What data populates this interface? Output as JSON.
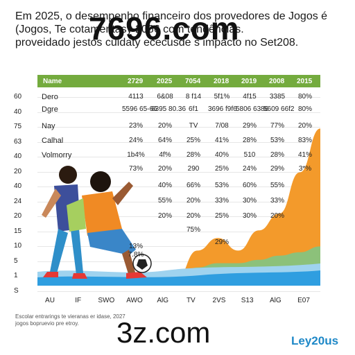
{
  "header": {
    "line1": "Em 2025, o desempenho financeiro dos provedores de Jogos é",
    "line2": "(Jogos, Te cotamentasy 2066 com tendências.",
    "line3": "proveidado jestos cuidaty ececusde s impacto no Set208."
  },
  "watermarks": {
    "top": "7696.com",
    "bottom": "3z.com"
  },
  "footnote": {
    "line1": "Escolar entrarings te vieranas er idase, 2027",
    "line2": "jogos bopruevio pre etroy."
  },
  "brand": "Ley20us",
  "colors": {
    "table_header": "#74ab3e",
    "orange": "#f39a2b",
    "green": "#8cc17a",
    "blue": "#2f9ee0",
    "light_blue": "#9fd3ef"
  },
  "chart_data": {
    "type": "area",
    "y_ticks": [
      "60",
      "40",
      "75",
      "63",
      "40",
      "20",
      "40",
      "24",
      "20",
      "15",
      "10",
      "5",
      "1",
      "S"
    ],
    "x_ticks": [
      "AU",
      "IF",
      "SWO",
      "AWO",
      "AlG",
      "TV",
      "2VS",
      "S13",
      "AlG",
      "E07"
    ],
    "table": {
      "header_label": "Name",
      "columns": [
        "2729",
        "2025",
        "7054",
        "2018",
        "2019",
        "2008",
        "2015"
      ],
      "rows": [
        {
          "label": "Dero",
          "cells": [
            "4113",
            "6&08",
            "8 f14",
            "5f1%",
            "4f15",
            "3385",
            "80%"
          ]
        },
        {
          "label": "Dgre",
          "cells": [
            "5596 65-66",
            "6395 80.36",
            "6f1",
            "3696 f9f6",
            "5806 6386",
            "5609 66f2",
            "80%"
          ]
        },
        {
          "label": "Nay",
          "cells": [
            "23%",
            "20%",
            "TV",
            "7/08",
            "29%",
            "77%",
            "20%"
          ]
        },
        {
          "label": "Calhal",
          "cells": [
            "24%",
            "64%",
            "25%",
            "41%",
            "28%",
            "53%",
            "83%"
          ]
        },
        {
          "label": "Volmorry",
          "cells": [
            "1b4%",
            "4f%",
            "28%",
            "40%",
            "510",
            "28%",
            "41%"
          ]
        }
      ],
      "extra_rows": [
        [
          "73%",
          "20%",
          "290",
          "25%",
          "24%",
          "29%",
          "3*%"
        ],
        [
          "",
          "40%",
          "66%",
          "53%",
          "60%",
          "55%",
          ""
        ],
        [
          "",
          "55%",
          "20%",
          "33%",
          "30%",
          "33%",
          ""
        ],
        [
          "",
          "20%",
          "20%",
          "25%",
          "30%",
          "20%",
          ""
        ],
        [
          "",
          "",
          "75%",
          "",
          "",
          "",
          ""
        ],
        [
          "",
          "",
          "",
          "29%",
          "",
          "",
          ""
        ],
        [
          "13%",
          "",
          "",
          "",
          "",
          "",
          ""
        ],
        [
          "7.8%",
          "",
          "",
          "",
          "",
          "",
          ""
        ]
      ]
    },
    "series": [
      {
        "name": "",
        "color": "#f39a2b",
        "x": [
          0,
          1,
          2,
          3,
          4,
          5,
          6,
          7,
          8,
          9
        ],
        "y": [
          0,
          0,
          0,
          2,
          3,
          1.5,
          3.5,
          5,
          9.5,
          14
        ]
      },
      {
        "name": "",
        "color": "#8cc17a",
        "x": [
          0,
          1,
          2,
          3,
          4,
          5,
          6,
          7,
          8,
          9
        ],
        "y": [
          0,
          0,
          0,
          1,
          1.3,
          1.2,
          1.5,
          1.8,
          2,
          2.5
        ]
      },
      {
        "name": "",
        "color": "#2f9ee0",
        "x": [
          0,
          1,
          2,
          3,
          4,
          5,
          6,
          7,
          8,
          9
        ],
        "y": [
          0.5,
          0.6,
          0.8,
          1,
          1.2,
          1.3,
          1.4,
          1.6,
          1.8,
          2
        ]
      }
    ],
    "ylim": [
      0,
      14
    ],
    "grid": true
  }
}
